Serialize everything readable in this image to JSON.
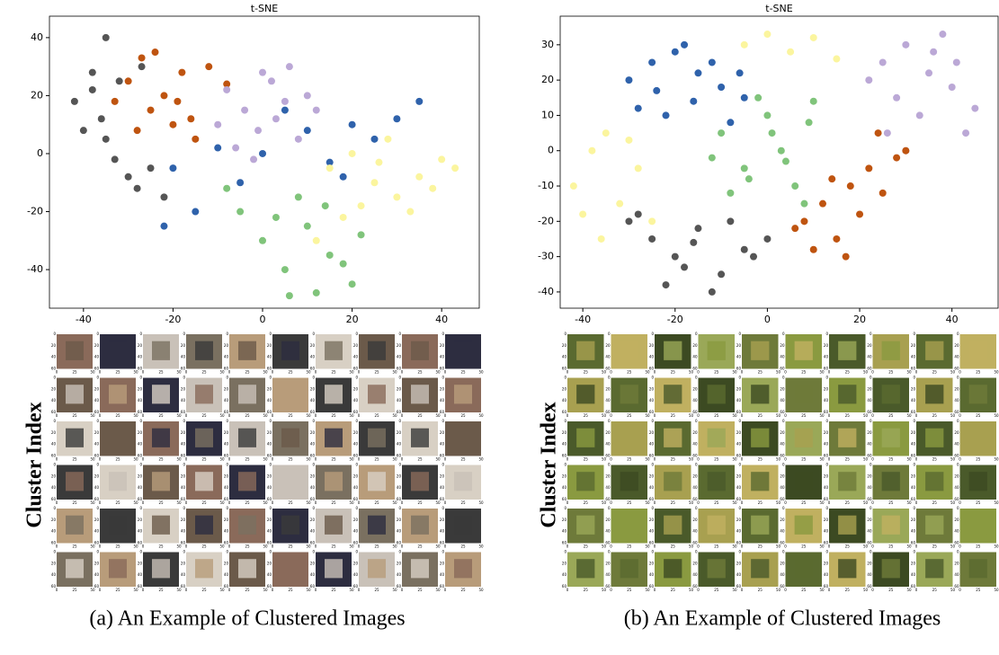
{
  "chart_data": [
    {
      "type": "scatter",
      "title": "t-SNE",
      "grid_label": "Cluster Index",
      "caption": "(a) An Example of Clustered Images",
      "xlim": [
        -47.6,
        48.4
      ],
      "xticks": [
        -40,
        -20,
        0,
        20,
        40
      ],
      "ylim": [
        -53.3,
        47.4
      ],
      "yticks": [
        -40,
        -20,
        0,
        20,
        40
      ],
      "thumbnail_xticks": [
        0,
        25,
        50
      ],
      "thumbnail_yticks": [
        0,
        20,
        40,
        60
      ],
      "series": [
        {
          "color": "#555555",
          "x": [
            -42,
            -38,
            -36,
            -35,
            -33,
            -30,
            -28,
            -25,
            -38,
            -32,
            -27,
            -22,
            -40,
            -35
          ],
          "values": [
            18,
            22,
            12,
            5,
            -2,
            -8,
            -12,
            -5,
            28,
            25,
            30,
            -15,
            8,
            40
          ]
        },
        {
          "color": "#bf5410",
          "x": [
            -30,
            -27,
            -25,
            -22,
            -20,
            -18,
            -15,
            -12,
            -24,
            -28,
            -19,
            -8,
            -16,
            -33
          ],
          "values": [
            25,
            33,
            15,
            20,
            10,
            28,
            5,
            30,
            35,
            8,
            18,
            24,
            12,
            18
          ]
        },
        {
          "color": "#bba8d6",
          "x": [
            -8,
            -4,
            -1,
            2,
            5,
            8,
            -6,
            0,
            10,
            3,
            -2,
            6,
            -10,
            12
          ],
          "values": [
            22,
            15,
            8,
            25,
            18,
            5,
            2,
            28,
            20,
            12,
            -2,
            30,
            10,
            15
          ]
        },
        {
          "color": "#2f62ab",
          "x": [
            -20,
            -15,
            -10,
            -5,
            0,
            5,
            10,
            15,
            20,
            25,
            30,
            35,
            -22,
            18
          ],
          "values": [
            -5,
            -20,
            2,
            -10,
            0,
            15,
            8,
            -3,
            10,
            5,
            12,
            18,
            -25,
            -8
          ]
        },
        {
          "color": "#fbf59e",
          "x": [
            15,
            20,
            25,
            30,
            35,
            40,
            43,
            28,
            22,
            38,
            33,
            18,
            26,
            12
          ],
          "values": [
            -5,
            0,
            -10,
            -15,
            -8,
            -2,
            -5,
            5,
            -18,
            -12,
            -20,
            -22,
            -3,
            -30
          ]
        },
        {
          "color": "#80c47b",
          "x": [
            -5,
            0,
            5,
            10,
            15,
            20,
            8,
            12,
            3,
            18,
            22,
            6,
            -8,
            14
          ],
          "values": [
            -20,
            -30,
            -40,
            -25,
            -35,
            -45,
            -15,
            -48,
            -22,
            -38,
            -28,
            -49,
            -12,
            -18
          ]
        }
      ]
    },
    {
      "type": "scatter",
      "title": "t-SNE",
      "grid_label": "Cluster Index",
      "caption": "(b) An Example of Clustered Images",
      "xlim": [
        -44.9,
        50
      ],
      "xticks": [
        -40,
        -20,
        0,
        20,
        40
      ],
      "ylim": [
        -44.6,
        38.1
      ],
      "yticks": [
        -40,
        -30,
        -20,
        -10,
        0,
        10,
        20,
        30
      ],
      "thumbnail_xticks": [
        0,
        25,
        50
      ],
      "thumbnail_yticks": [
        0,
        20,
        40,
        60
      ],
      "series": [
        {
          "color": "#2f62ab",
          "x": [
            -30,
            -25,
            -20,
            -15,
            -10,
            -5,
            -28,
            -22,
            -18,
            -12,
            -8,
            -24,
            -16,
            -6
          ],
          "values": [
            20,
            25,
            28,
            22,
            18,
            15,
            12,
            10,
            30,
            25,
            8,
            17,
            14,
            22
          ]
        },
        {
          "color": "#fbf59e",
          "x": [
            -42,
            -38,
            -35,
            -32,
            -28,
            -25,
            -40,
            -36,
            -30,
            -5,
            0,
            5,
            10,
            15
          ],
          "values": [
            -10,
            0,
            5,
            -15,
            -5,
            -20,
            -18,
            -25,
            3,
            30,
            33,
            28,
            32,
            26
          ]
        },
        {
          "color": "#bba8d6",
          "x": [
            22,
            25,
            28,
            30,
            33,
            35,
            38,
            40,
            43,
            45,
            30,
            36,
            26,
            41
          ],
          "values": [
            20,
            25,
            15,
            30,
            10,
            22,
            33,
            18,
            5,
            12,
            0,
            28,
            5,
            25
          ]
        },
        {
          "color": "#80c47b",
          "x": [
            -10,
            -5,
            0,
            3,
            6,
            9,
            -8,
            -2,
            4,
            8,
            -12,
            1,
            10,
            -4
          ],
          "values": [
            5,
            -5,
            10,
            0,
            -10,
            8,
            -12,
            15,
            -3,
            -15,
            -2,
            5,
            14,
            -8
          ]
        },
        {
          "color": "#bf5410",
          "x": [
            8,
            12,
            15,
            18,
            22,
            25,
            28,
            10,
            20,
            30,
            14,
            24,
            6,
            17
          ],
          "values": [
            -20,
            -15,
            -25,
            -10,
            -5,
            -12,
            -2,
            -28,
            -18,
            0,
            -8,
            5,
            -22,
            -30
          ]
        },
        {
          "color": "#555555",
          "x": [
            -30,
            -25,
            -20,
            -15,
            -10,
            -5,
            0,
            -28,
            -22,
            -18,
            -12,
            -8,
            -3,
            -16
          ],
          "values": [
            -20,
            -25,
            -30,
            -22,
            -35,
            -28,
            -25,
            -18,
            -38,
            -33,
            -40,
            -20,
            -30,
            -26
          ]
        }
      ]
    }
  ]
}
